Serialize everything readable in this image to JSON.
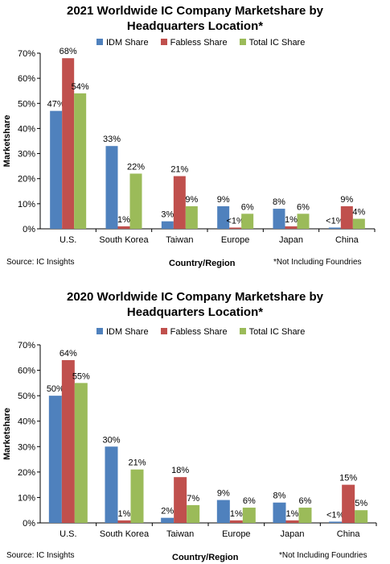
{
  "colors": {
    "idm": "#4f81bd",
    "fabless": "#c0504d",
    "total": "#9bbb59"
  },
  "chart_data": [
    {
      "type": "bar",
      "title_lines": [
        "2021 Worldwide IC Company Marketshare by",
        "Headquarters Location*"
      ],
      "categories": [
        "U.S.",
        "South Korea",
        "Taiwan",
        "Europe",
        "Japan",
        "China"
      ],
      "series": [
        {
          "name": "IDM Share",
          "values": [
            47,
            33,
            3,
            9,
            8,
            0.5
          ],
          "labels": [
            "47%",
            "33%",
            "3%",
            "9%",
            "8%",
            "<1%"
          ]
        },
        {
          "name": "Fabless Share",
          "values": [
            68,
            1,
            21,
            0.5,
            1,
            9
          ],
          "labels": [
            "68%",
            "1%",
            "21%",
            "<1%",
            "1%",
            "9%"
          ]
        },
        {
          "name": "Total IC Share",
          "values": [
            54,
            22,
            9,
            6,
            6,
            4
          ],
          "labels": [
            "54%",
            "22%",
            "9%",
            "6%",
            "6%",
            "4%"
          ]
        }
      ],
      "yticks": [
        "0%",
        "10%",
        "20%",
        "30%",
        "40%",
        "50%",
        "60%",
        "70%"
      ],
      "ylim": [
        0,
        70
      ],
      "xlabel": "Country/Region",
      "ylabel": "Marketshare",
      "source": "Source: IC Insights",
      "note": "*Not Including Foundries"
    },
    {
      "type": "bar",
      "title_lines": [
        "2020 Worldwide IC Company Marketshare by",
        "Headquarters Location*"
      ],
      "categories": [
        "U.S.",
        "South Korea",
        "Taiwan",
        "Europe",
        "Japan",
        "China"
      ],
      "series": [
        {
          "name": "IDM Share",
          "values": [
            50,
            30,
            2,
            9,
            8,
            0.5
          ],
          "labels": [
            "50%",
            "30%",
            "2%",
            "9%",
            "8%",
            "<1%"
          ]
        },
        {
          "name": "Fabless Share",
          "values": [
            64,
            1,
            18,
            1,
            1,
            15
          ],
          "labels": [
            "64%",
            "1%",
            "18%",
            "1%",
            "1%",
            "15%"
          ]
        },
        {
          "name": "Total IC Share",
          "values": [
            55,
            21,
            7,
            6,
            6,
            5
          ],
          "labels": [
            "55%",
            "21%",
            "7%",
            "6%",
            "6%",
            "5%"
          ]
        }
      ],
      "yticks": [
        "0%",
        "10%",
        "20%",
        "30%",
        "40%",
        "50%",
        "60%",
        "70%"
      ],
      "ylim": [
        0,
        70
      ],
      "xlabel": "Country/Region",
      "ylabel": "Marketshare",
      "source": "Source: IC Insights",
      "note": "*Not Including Foundries"
    }
  ]
}
